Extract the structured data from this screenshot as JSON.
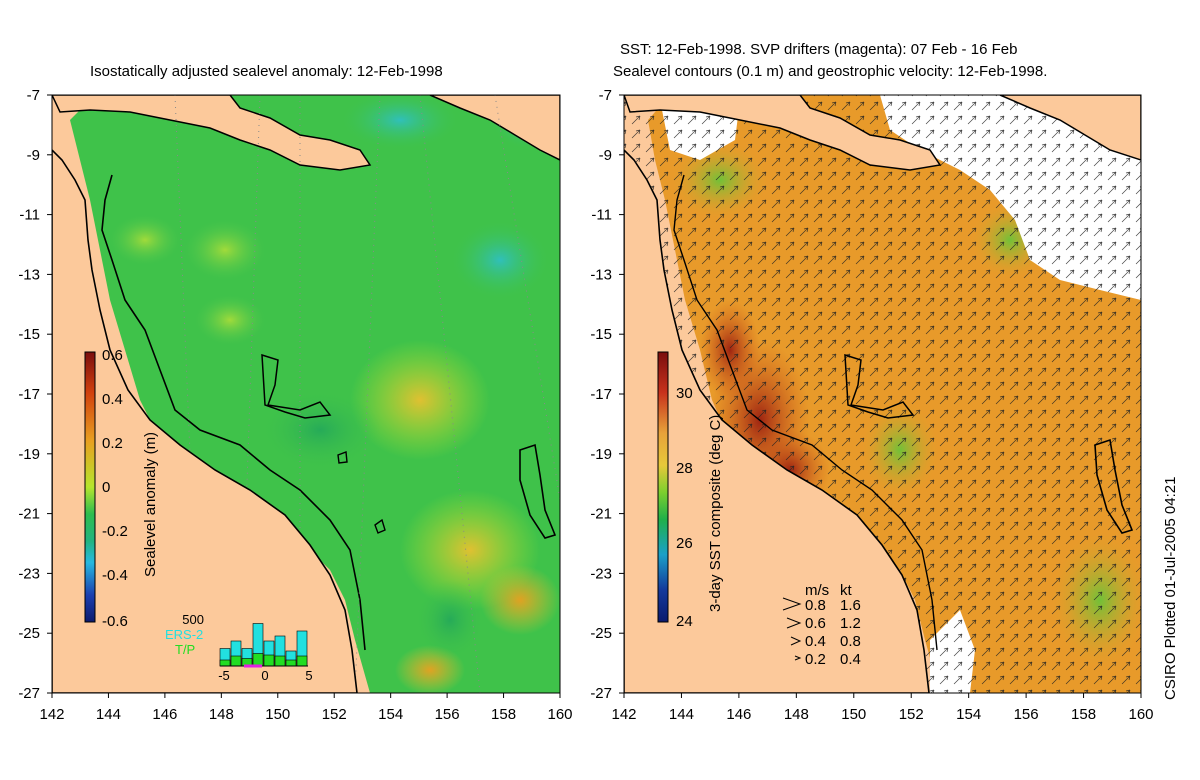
{
  "left_panel": {
    "title": "Isostatically adjusted sealevel anomaly: 12-Feb-1998",
    "colorbar": {
      "label": "Sealevel anomaly (m)",
      "ticks": [
        "0.6",
        "0.4",
        "0.2",
        "0",
        "-0.2",
        "-0.4",
        "-0.6"
      ],
      "values": [
        0.6,
        0.4,
        0.2,
        0,
        -0.2,
        -0.4,
        -0.6
      ],
      "colors": [
        "#7a0d0d",
        "#d1400e",
        "#e8a020",
        "#b6e52d",
        "#2dbd4e",
        "#27b9e0",
        "#1c3fb0",
        "#0b1a6e"
      ]
    },
    "histogram": {
      "ymax_label": "500",
      "legend": [
        "ERS-2",
        "T/P"
      ],
      "legend_colors": [
        "#22e0e0",
        "#22dd22"
      ],
      "xticks": [
        "-5",
        "0",
        "5"
      ],
      "ers2": [
        0.35,
        0.5,
        0.35,
        0.85,
        0.5,
        0.6,
        0.3,
        0.7
      ],
      "tp": [
        0.12,
        0.2,
        0.15,
        0.25,
        0.22,
        0.2,
        0.12,
        0.2
      ]
    }
  },
  "right_panel": {
    "title_line1": "SST: 12-Feb-1998. SVP drifters (magenta): 07 Feb - 16 Feb",
    "title_line2": "Sealevel contours (0.1 m) and geostrophic velocity: 12-Feb-1998.",
    "colorbar": {
      "label": "3-day SST composite (deg C)",
      "ticks": [
        "30",
        "28",
        "26",
        "24"
      ],
      "values": [
        30,
        28,
        26,
        24
      ],
      "colors": [
        "#7a0d0d",
        "#c8321c",
        "#e7a23a",
        "#e7c83a",
        "#7ccf2e",
        "#1fb04a",
        "#1aa0c8",
        "#153a9c",
        "#0b1a6e"
      ]
    },
    "velocity_legend": {
      "header_ms": "m/s",
      "header_kt": "kt",
      "rows": [
        {
          "ms": "0.8",
          "kt": "1.6"
        },
        {
          "ms": "0.6",
          "kt": "1.2"
        },
        {
          "ms": "0.4",
          "kt": "0.8"
        },
        {
          "ms": "0.2",
          "kt": "0.4"
        }
      ]
    }
  },
  "axes": {
    "lon_ticks": [
      "142",
      "144",
      "146",
      "148",
      "150",
      "152",
      "154",
      "156",
      "158",
      "160"
    ],
    "lat_ticks": [
      "-7",
      "-9",
      "-11",
      "-13",
      "-15",
      "-17",
      "-19",
      "-21",
      "-23",
      "-25",
      "-27"
    ],
    "lon_range": [
      142,
      160
    ],
    "lat_range": [
      -27,
      -7
    ]
  },
  "credit": "CSIRO Plotted 01-Jul-2005 04:21",
  "colors": {
    "land": "#fcc99b",
    "ocean_base": "#3fc24a",
    "shelf_green": "#52c84e",
    "sst_warm": "#e89a2a",
    "cloud": "#ffffff"
  }
}
